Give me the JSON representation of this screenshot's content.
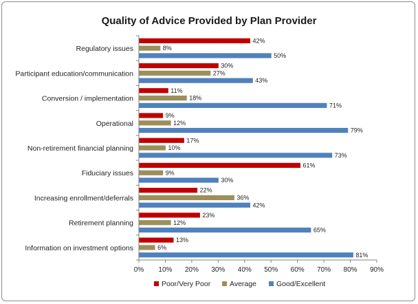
{
  "chart_data": {
    "type": "bar",
    "orientation": "horizontal",
    "title": "Quality of Advice Provided by Plan Provider",
    "xlabel": "",
    "ylabel": "",
    "xlim": [
      0,
      90
    ],
    "ticks": [
      "0%",
      "10%",
      "20%",
      "30%",
      "40%",
      "50%",
      "60%",
      "70%",
      "80%",
      "90%"
    ],
    "tick_values": [
      0,
      10,
      20,
      30,
      40,
      50,
      60,
      70,
      80,
      90
    ],
    "grid": false,
    "legend_position": "bottom",
    "categories": [
      "Regulatory issues",
      "Participant education/communication",
      "Conversion / implementation",
      "Operational",
      "Non-retirement financial planning",
      "Fiduciary issues",
      "Increasing enrollment/deferrals",
      "Retirement planning",
      "Information on investment options"
    ],
    "series": [
      {
        "name": "Poor/Very Poor",
        "color": "#c00000",
        "values": [
          42,
          30,
          11,
          9,
          17,
          61,
          22,
          23,
          13
        ],
        "labels": [
          "42%",
          "30%",
          "11%",
          "9%",
          "17%",
          "61%",
          "22%",
          "23%",
          "13%"
        ]
      },
      {
        "name": "Average",
        "color": "#9c8f5a",
        "values": [
          8,
          27,
          18,
          12,
          10,
          9,
          36,
          12,
          6
        ],
        "labels": [
          "8%",
          "27%",
          "18%",
          "12%",
          "10%",
          "9%",
          "36%",
          "12%",
          "6%"
        ]
      },
      {
        "name": "Good/Excellent",
        "color": "#4f81bd",
        "values": [
          50,
          43,
          71,
          79,
          73,
          30,
          42,
          65,
          81
        ],
        "labels": [
          "50%",
          "43%",
          "71%",
          "79%",
          "73%",
          "30%",
          "42%",
          "65%",
          "81%"
        ]
      }
    ]
  }
}
